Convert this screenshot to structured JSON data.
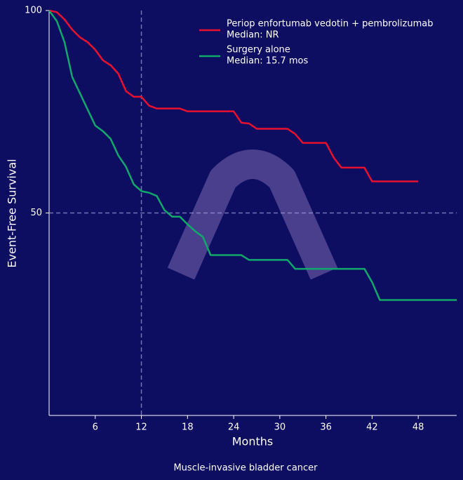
{
  "chart_data": {
    "type": "line",
    "subtitle": "Muscle-invasive bladder cancer",
    "x_label": "Months",
    "y_label": "Event-Free Survival",
    "xlim": [
      0,
      53
    ],
    "ylim": [
      0,
      100
    ],
    "xticks": [
      6,
      12,
      18,
      24,
      30,
      36,
      42,
      48
    ],
    "yticks": [
      50,
      100
    ],
    "vline": 12,
    "hline": 50,
    "series": [
      {
        "name": "Periop enfortumab vedotin + pembrolizumab",
        "median_label": "Median: NR",
        "color": "#e8112d",
        "x": [
          0,
          1,
          2,
          3,
          4,
          5,
          6,
          7,
          8,
          9,
          10,
          11,
          12,
          13,
          14,
          17,
          18,
          24,
          25,
          26,
          27,
          31,
          32,
          33,
          36,
          37,
          38,
          41,
          42,
          48
        ],
        "values": [
          100,
          99.6,
          97.8,
          95.3,
          93.4,
          92.2,
          90.3,
          87.7,
          86.5,
          84.4,
          80.1,
          78.7,
          78.7,
          76.5,
          75.8,
          75.8,
          75.1,
          75.1,
          72.3,
          72.1,
          70.8,
          70.8,
          69.5,
          67.3,
          67.3,
          63.7,
          61.2,
          61.2,
          57.8,
          57.8
        ]
      },
      {
        "name": "Surgery alone",
        "median_label": "Median: 15.7 mos",
        "color": "#10a96b",
        "x": [
          0,
          1,
          2,
          3,
          4,
          5,
          6,
          7,
          8,
          9,
          10,
          11,
          12,
          13,
          14,
          15,
          16,
          17,
          18,
          19,
          20,
          21,
          25,
          26,
          31,
          32,
          41,
          42,
          43,
          53
        ],
        "values": [
          100,
          97.4,
          92.2,
          83.6,
          79.6,
          75.6,
          71.6,
          70.2,
          68.3,
          64.2,
          61.4,
          57.1,
          55.4,
          55.0,
          54.2,
          50.7,
          49.1,
          49.1,
          47.2,
          45.5,
          44.1,
          39.6,
          39.6,
          38.4,
          38.4,
          36.2,
          36.2,
          32.9,
          28.5,
          28.5
        ]
      }
    ]
  }
}
